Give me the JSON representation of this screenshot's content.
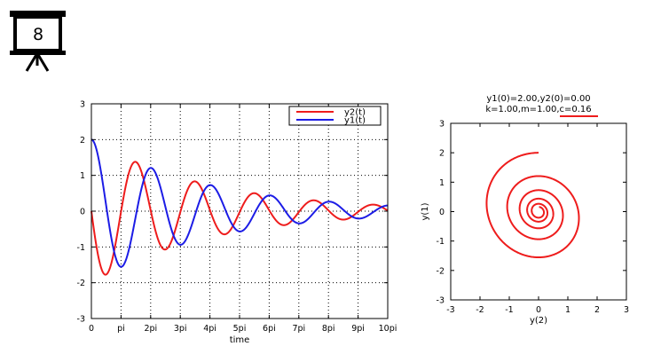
{
  "slide": {
    "number": "8"
  },
  "chart_data": [
    {
      "type": "line",
      "xlabel": "time",
      "ylabel": "",
      "xlim": [
        0,
        10
      ],
      "ylim": [
        -3,
        3
      ],
      "x_unit": "pi",
      "xtick_values": [
        0,
        1,
        2,
        3,
        4,
        5,
        6,
        7,
        8,
        9,
        10
      ],
      "xtick_labels": [
        "0",
        "pi",
        "2pi",
        "3pi",
        "4pi",
        "5pi",
        "6pi",
        "7pi",
        "8pi",
        "9pi",
        "10pi"
      ],
      "ytick_values": [
        -3,
        -2,
        -1,
        0,
        1,
        2,
        3
      ],
      "ytick_labels": [
        "-3",
        "-2",
        "-1",
        "0",
        "1",
        "2",
        "3"
      ],
      "grid": true,
      "legend_position": "top-right",
      "model": {
        "m": 1.0,
        "k": 1.0,
        "c": 0.16,
        "y1_0": 2.0,
        "y2_0": 0.0
      },
      "series": [
        {
          "name": "y2(t)",
          "color": "#ee1c1c",
          "function": "y2 = dy1/dt"
        },
        {
          "name": "y1(t)",
          "color": "#1c1ce6",
          "function": "y1"
        }
      ]
    },
    {
      "type": "line",
      "title_lines": [
        "y1(0)=2.00,y2(0)=0.00",
        "k=1.00,m=1.00,c=0.16"
      ],
      "xlabel": "y(2)",
      "ylabel": "y(1)",
      "xlim": [
        -3,
        3
      ],
      "ylim": [
        -3,
        3
      ],
      "xtick_values": [
        -3,
        -2,
        -1,
        0,
        1,
        2,
        3
      ],
      "xtick_labels": [
        "-3",
        "-2",
        "-1",
        "0",
        "1",
        "2",
        "3"
      ],
      "ytick_values": [
        -3,
        -2,
        -1,
        0,
        1,
        2,
        3
      ],
      "ytick_labels": [
        "-3",
        "-2",
        "-1",
        "0",
        "1",
        "2",
        "3"
      ],
      "grid": false,
      "series": [
        {
          "name": "",
          "color": "#ee1c1c",
          "function": "phase: x=y2, y=y1"
        }
      ]
    }
  ]
}
